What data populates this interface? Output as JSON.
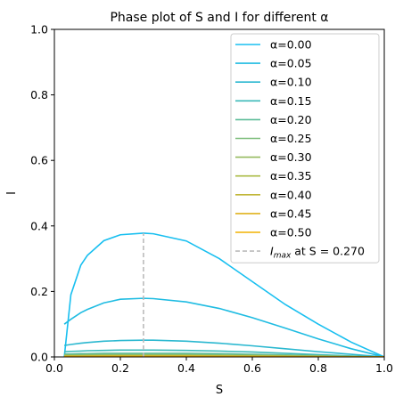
{
  "chart_data": {
    "type": "line",
    "title": "Phase plot of S and I for different α",
    "xlabel": "S",
    "ylabel": "I",
    "xlim": [
      0.0,
      1.0
    ],
    "ylim": [
      0.0,
      1.0
    ],
    "xticks": [
      "0.0",
      "0.2",
      "0.4",
      "0.6",
      "0.8",
      "1.0"
    ],
    "yticks": [
      "0.0",
      "0.2",
      "0.4",
      "0.6",
      "0.8",
      "1.0"
    ],
    "grid": false,
    "legend_position": "top-right",
    "x": [
      0.03,
      0.05,
      0.08,
      0.1,
      0.15,
      0.2,
      0.27,
      0.3,
      0.4,
      0.5,
      0.6,
      0.7,
      0.8,
      0.9,
      1.0
    ],
    "series": [
      {
        "name": "α=0.00",
        "color": "#18bff0",
        "values": [
          0.0,
          0.19,
          0.28,
          0.31,
          0.355,
          0.373,
          0.378,
          0.376,
          0.354,
          0.3,
          0.23,
          0.16,
          0.1,
          0.045,
          0.0
        ]
      },
      {
        "name": "α=0.05",
        "color": "#1fbce2",
        "values": [
          0.1,
          0.115,
          0.135,
          0.145,
          0.165,
          0.176,
          0.179,
          0.178,
          0.168,
          0.148,
          0.12,
          0.088,
          0.055,
          0.025,
          0.0
        ]
      },
      {
        "name": "α=0.10",
        "color": "#2ab8d0",
        "values": [
          0.035,
          0.038,
          0.042,
          0.044,
          0.048,
          0.05,
          0.051,
          0.051,
          0.048,
          0.042,
          0.034,
          0.025,
          0.016,
          0.008,
          0.0
        ]
      },
      {
        "name": "α=0.15",
        "color": "#3bb9b8",
        "values": [
          0.016,
          0.017,
          0.018,
          0.019,
          0.02,
          0.021,
          0.021,
          0.021,
          0.02,
          0.018,
          0.015,
          0.011,
          0.007,
          0.003,
          0.0
        ]
      },
      {
        "name": "α=0.20",
        "color": "#5bbb98",
        "values": [
          0.009,
          0.009,
          0.01,
          0.01,
          0.011,
          0.011,
          0.011,
          0.011,
          0.011,
          0.01,
          0.008,
          0.006,
          0.004,
          0.002,
          0.0
        ]
      },
      {
        "name": "α=0.25",
        "color": "#7cbd7a",
        "values": [
          0.006,
          0.006,
          0.006,
          0.007,
          0.007,
          0.007,
          0.007,
          0.007,
          0.007,
          0.006,
          0.005,
          0.004,
          0.003,
          0.001,
          0.0
        ]
      },
      {
        "name": "α=0.30",
        "color": "#95ba5f",
        "values": [
          0.004,
          0.004,
          0.004,
          0.005,
          0.005,
          0.005,
          0.005,
          0.005,
          0.005,
          0.004,
          0.004,
          0.003,
          0.002,
          0.001,
          0.0
        ]
      },
      {
        "name": "α=0.35",
        "color": "#abbb45",
        "values": [
          0.003,
          0.003,
          0.003,
          0.003,
          0.004,
          0.004,
          0.004,
          0.004,
          0.004,
          0.003,
          0.003,
          0.002,
          0.001,
          0.001,
          0.0
        ]
      },
      {
        "name": "α=0.40",
        "color": "#c2b83a",
        "values": [
          0.002,
          0.002,
          0.002,
          0.002,
          0.003,
          0.003,
          0.003,
          0.003,
          0.003,
          0.002,
          0.002,
          0.001,
          0.001,
          0.0,
          0.0
        ]
      },
      {
        "name": "α=0.45",
        "color": "#e0b21d",
        "values": [
          0.002,
          0.002,
          0.002,
          0.002,
          0.002,
          0.002,
          0.002,
          0.002,
          0.002,
          0.002,
          0.001,
          0.001,
          0.001,
          0.0,
          0.0
        ]
      },
      {
        "name": "α=0.50",
        "color": "#f2b200",
        "values": [
          0.001,
          0.001,
          0.001,
          0.001,
          0.001,
          0.001,
          0.001,
          0.001,
          0.001,
          0.001,
          0.001,
          0.001,
          0.0,
          0.0,
          0.0
        ]
      }
    ],
    "annotation": {
      "label": "I_max at S = 0.270",
      "legend_prefix": "I",
      "legend_sub": "max",
      "legend_suffix": " at S = 0.270",
      "x": 0.27,
      "y_top": 0.378,
      "color": "#bbbbbb",
      "style": "dashed"
    }
  }
}
